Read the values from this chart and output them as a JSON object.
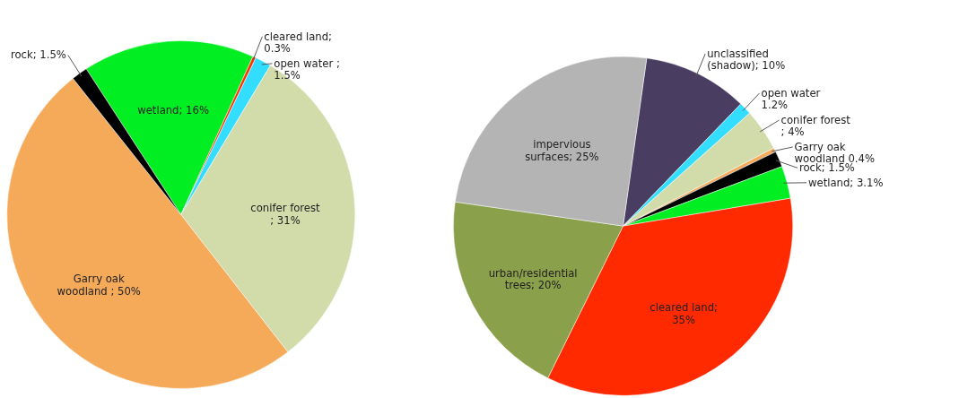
{
  "chart_data": [
    {
      "type": "pie",
      "categories": [
        "wetland; 16%",
        "cleared land; 0.3%",
        "open water ; 1.5%",
        "conifer forest ; 31%",
        "Garry oak woodland ; 50%",
        "rock; 1.5%"
      ],
      "values": [
        16,
        0.3,
        1.5,
        31,
        50,
        1.5
      ],
      "colors": [
        "#00ee22",
        "#ff3300",
        "#33ddff",
        "#d2dcaa",
        "#f5aa5a",
        "#000000"
      ],
      "legend": false
    },
    {
      "type": "pie",
      "categories": [
        "unclassified (shadow); 10%",
        "open water 1.2%",
        "conifer forest ; 4%",
        "Garry oak woodland 0.4%",
        "rock; 1.5%",
        "wetland; 3.1%",
        "cleared land; 35%",
        "urban/residential trees; 20%",
        "impervious surfaces; 25%"
      ],
      "values": [
        10,
        1.2,
        4,
        0.4,
        1.5,
        3.1,
        35,
        20,
        25
      ],
      "colors": [
        "#4a3d62",
        "#33ddff",
        "#d2dcaa",
        "#f5aa5a",
        "#000000",
        "#00ee22",
        "#ff2a00",
        "#8aa04a",
        "#b4b4b4"
      ],
      "legend": false
    }
  ]
}
